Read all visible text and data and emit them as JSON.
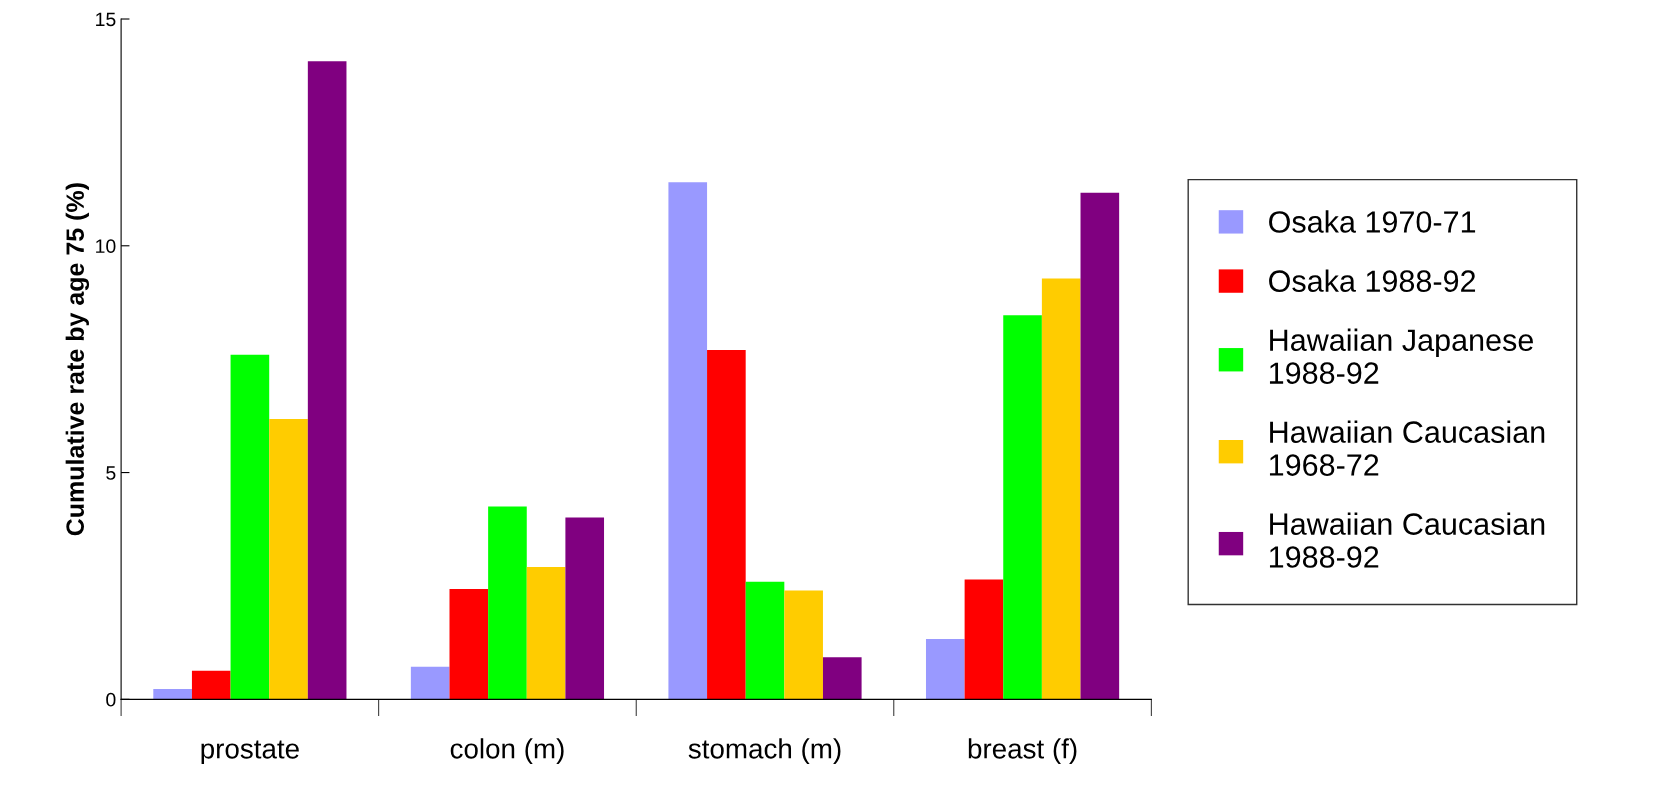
{
  "chart_data": {
    "type": "bar",
    "ylabel": "Cumulative rate by age 75 (%)",
    "categories": [
      "prostate",
      "colon (m)",
      "stomach (m)",
      "breast (f)"
    ],
    "series": [
      {
        "name": "Osaka 1970-71",
        "color": "#9999ff",
        "values": [
          0.23,
          0.72,
          11.4,
          1.33
        ]
      },
      {
        "name": "Osaka 1988-92",
        "color": "#ff0000",
        "values": [
          0.63,
          2.43,
          7.7,
          2.64
        ]
      },
      {
        "name": "Hawaiian Japanese\n1988-92",
        "color": "#00ff00",
        "values": [
          7.6,
          4.25,
          2.59,
          8.47
        ]
      },
      {
        "name": "Hawaiian Caucasian\n1968-72",
        "color": "#ffcc00",
        "values": [
          6.18,
          2.92,
          2.4,
          9.28
        ]
      },
      {
        "name": "Hawaiian Caucasian\n1988-92",
        "color": "#800080",
        "values": [
          14.07,
          4.01,
          0.93,
          11.17
        ]
      }
    ],
    "ylim": [
      0,
      15
    ],
    "yticks": [
      0,
      5,
      10,
      15
    ],
    "grid": false,
    "legend": "right"
  }
}
